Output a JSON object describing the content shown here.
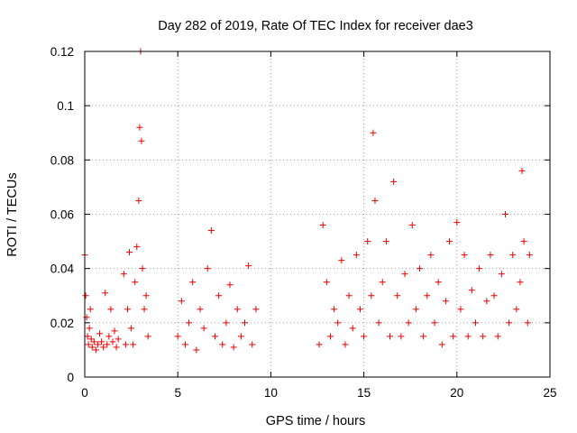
{
  "chart_data": {
    "type": "scatter",
    "title": "Day 282 of 2019, Rate Of TEC Index for receiver dae3",
    "xlabel": "GPS time / hours",
    "ylabel": "ROTI / TECUs",
    "xlim": [
      0,
      25
    ],
    "ylim": [
      0,
      0.12
    ],
    "xticks": [
      0,
      5,
      10,
      15,
      20,
      25
    ],
    "xtick_labels": [
      "0",
      "5",
      "10",
      "15",
      "20",
      "25"
    ],
    "yticks": [
      0,
      0.02,
      0.04,
      0.06,
      0.08,
      0.1,
      0.12
    ],
    "ytick_labels": [
      "0",
      "0.02",
      "0.04",
      "0.06",
      "0.08",
      "0.1",
      "0.12"
    ],
    "grid": true,
    "marker": "plus",
    "color": "#ee0000",
    "series": [
      {
        "x": [
          0.0,
          0.05,
          0.1,
          0.15,
          0.2,
          0.25,
          0.3,
          0.35,
          0.4,
          0.5,
          0.6,
          0.7,
          0.8,
          0.9,
          1.0,
          1.1,
          1.2,
          1.3,
          1.4,
          1.5,
          1.6,
          1.7,
          1.8,
          2.1,
          2.2,
          2.3,
          2.4,
          2.5,
          2.6,
          2.7,
          2.8,
          2.9,
          2.95,
          3.0,
          3.05,
          3.1,
          3.2,
          3.3,
          3.4,
          5.0,
          5.2,
          5.4,
          5.6,
          5.8,
          6.0,
          6.2,
          6.4,
          6.6,
          6.8,
          7.0,
          7.2,
          7.4,
          7.6,
          7.8,
          8.0,
          8.2,
          8.4,
          8.6,
          8.8,
          9.0,
          9.2,
          12.6,
          12.8,
          13.0,
          13.2,
          13.4,
          13.6,
          13.8,
          14.0,
          14.2,
          14.4,
          14.6,
          14.8,
          15.0,
          15.2,
          15.4,
          15.5,
          15.6,
          15.8,
          16.0,
          16.2,
          16.4,
          16.6,
          16.8,
          17.0,
          17.2,
          17.4,
          17.6,
          17.8,
          18.0,
          18.2,
          18.4,
          18.6,
          18.8,
          19.0,
          19.2,
          19.4,
          19.6,
          19.8,
          20.0,
          20.2,
          20.4,
          20.6,
          20.8,
          21.0,
          21.2,
          21.4,
          21.6,
          21.8,
          22.0,
          22.2,
          22.4,
          22.6,
          22.8,
          23.0,
          23.2,
          23.4,
          23.5,
          23.6,
          23.8,
          23.9
        ],
        "y": [
          0.045,
          0.03,
          0.022,
          0.015,
          0.012,
          0.018,
          0.025,
          0.014,
          0.011,
          0.013,
          0.01,
          0.012,
          0.016,
          0.013,
          0.011,
          0.031,
          0.012,
          0.015,
          0.025,
          0.013,
          0.017,
          0.011,
          0.014,
          0.038,
          0.012,
          0.025,
          0.046,
          0.018,
          0.012,
          0.035,
          0.048,
          0.065,
          0.092,
          0.12,
          0.087,
          0.04,
          0.025,
          0.03,
          0.015,
          0.015,
          0.028,
          0.012,
          0.02,
          0.035,
          0.01,
          0.025,
          0.018,
          0.04,
          0.054,
          0.015,
          0.03,
          0.012,
          0.02,
          0.034,
          0.011,
          0.025,
          0.015,
          0.02,
          0.041,
          0.012,
          0.025,
          0.012,
          0.056,
          0.035,
          0.015,
          0.025,
          0.02,
          0.043,
          0.012,
          0.03,
          0.018,
          0.045,
          0.025,
          0.015,
          0.05,
          0.03,
          0.09,
          0.065,
          0.02,
          0.035,
          0.05,
          0.015,
          0.072,
          0.03,
          0.015,
          0.038,
          0.02,
          0.056,
          0.025,
          0.04,
          0.015,
          0.03,
          0.045,
          0.02,
          0.035,
          0.012,
          0.028,
          0.05,
          0.015,
          0.057,
          0.025,
          0.045,
          0.015,
          0.032,
          0.02,
          0.04,
          0.015,
          0.028,
          0.045,
          0.03,
          0.015,
          0.038,
          0.06,
          0.02,
          0.045,
          0.025,
          0.035,
          0.076,
          0.05,
          0.02,
          0.045
        ]
      }
    ]
  }
}
